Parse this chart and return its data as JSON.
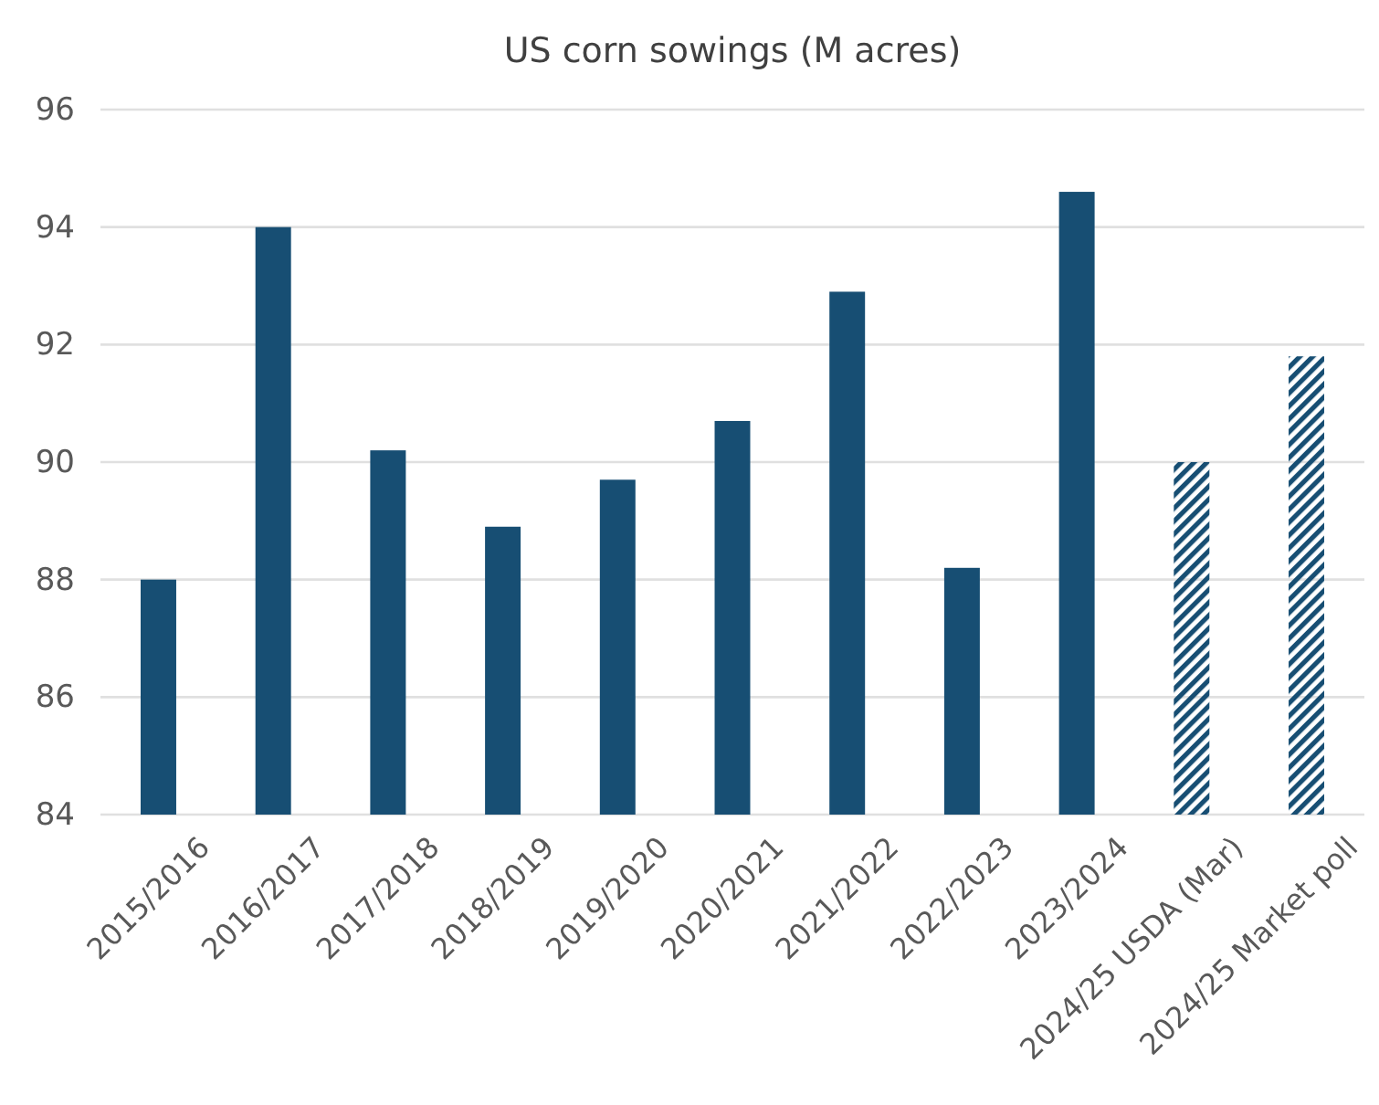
{
  "chart_data": {
    "type": "bar",
    "title": "US corn sowings (M acres)",
    "categories": [
      "2015/2016",
      "2016/2017",
      "2017/2018",
      "2018/2019",
      "2019/2020",
      "2020/2021",
      "2021/2022",
      "2022/2023",
      "2023/2024",
      "2024/25 USDA (Mar)",
      "2024/25 Market poll"
    ],
    "series": [
      {
        "color": "#174e73",
        "values": [
          88.0,
          94.0,
          90.2,
          88.9,
          89.7,
          90.7,
          92.9,
          88.2,
          94.6,
          null,
          null
        ]
      },
      {
        "color": "#174e73",
        "values": [
          null,
          null,
          null,
          null,
          null,
          null,
          null,
          null,
          null,
          90.0,
          91.8
        ]
      }
    ],
    "ylim": [
      84,
      96
    ],
    "yticks": [
      84,
      86,
      88,
      90,
      92,
      94,
      96
    ],
    "grid": "y"
  }
}
